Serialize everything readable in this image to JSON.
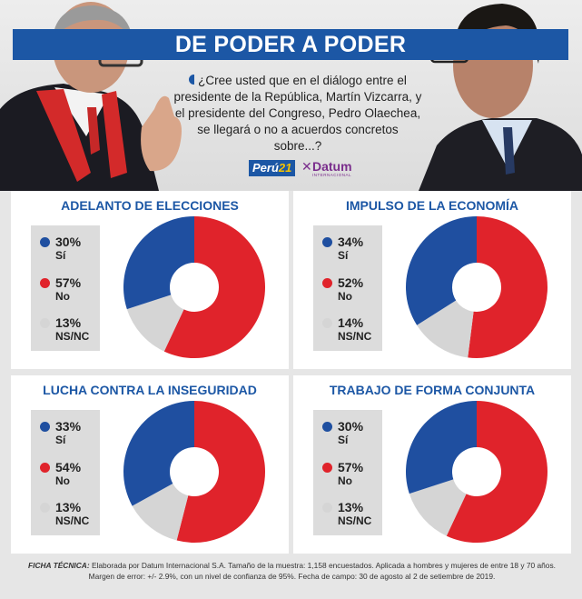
{
  "header": {
    "title": "DE PODER A PODER",
    "question": "¿Cree usted que en el diálogo entre el presidente de la República, Martín Vizcarra, y el presidente del Congreso, Pedro Olaechea, se llegará o no a acuerdos concretos sobre...?",
    "logo_peru21_a": "Perú",
    "logo_peru21_b": "21",
    "logo_datum": "Datum",
    "logo_datum_sub": "INTERNACIONAL"
  },
  "colors": {
    "si": "#1f4fa0",
    "no": "#e0232b",
    "nsnc": "#d5d5d5",
    "accent": "#1c57a5"
  },
  "chart_data": [
    {
      "type": "pie",
      "title": "ADELANTO DE ELECCIONES",
      "series": [
        {
          "name": "Sí",
          "value": 30
        },
        {
          "name": "No",
          "value": 57
        },
        {
          "name": "NS/NC",
          "value": 13
        }
      ]
    },
    {
      "type": "pie",
      "title": "IMPULSO DE LA ECONOMÍA",
      "series": [
        {
          "name": "Sí",
          "value": 34
        },
        {
          "name": "No",
          "value": 52
        },
        {
          "name": "NS/NC",
          "value": 14
        }
      ]
    },
    {
      "type": "pie",
      "title": "LUCHA CONTRA LA INSEGURIDAD",
      "series": [
        {
          "name": "Sí",
          "value": 33
        },
        {
          "name": "No",
          "value": 54
        },
        {
          "name": "NS/NC",
          "value": 13
        }
      ]
    },
    {
      "type": "pie",
      "title": "TRABAJO DE FORMA CONJUNTA",
      "series": [
        {
          "name": "Sí",
          "value": 30
        },
        {
          "name": "No",
          "value": 57
        },
        {
          "name": "NS/NC",
          "value": 13
        }
      ]
    }
  ],
  "panels": [
    {
      "title": "ADELANTO DE ELECCIONES",
      "si_pct": "30%",
      "si_lbl": "Sí",
      "no_pct": "57%",
      "no_lbl": "No",
      "ns_pct": "13%",
      "ns_lbl": "NS/NC"
    },
    {
      "title": "IMPULSO DE LA ECONOMÍA",
      "si_pct": "34%",
      "si_lbl": "Sí",
      "no_pct": "52%",
      "no_lbl": "No",
      "ns_pct": "14%",
      "ns_lbl": "NS/NC"
    },
    {
      "title": "LUCHA CONTRA LA INSEGURIDAD",
      "si_pct": "33%",
      "si_lbl": "Sí",
      "no_pct": "54%",
      "no_lbl": "No",
      "ns_pct": "13%",
      "ns_lbl": "NS/NC"
    },
    {
      "title": "TRABAJO DE FORMA CONJUNTA",
      "si_pct": "30%",
      "si_lbl": "Sí",
      "no_pct": "57%",
      "no_lbl": "No",
      "ns_pct": "13%",
      "ns_lbl": "NS/NC"
    }
  ],
  "ficha": {
    "label": "FICHA TÉCNICA:",
    "line1": "Elaborada por Datum Internacional S.A. Tamaño de la muestra: 1,158 encuestados. Aplicada a hombres y mujeres de entre 18 y 70 años.",
    "line2": "Margen de error: +/- 2.9%, con un nivel de confianza de 95%. Fecha de campo: 30 de agosto al 2 de setiembre de 2019."
  }
}
